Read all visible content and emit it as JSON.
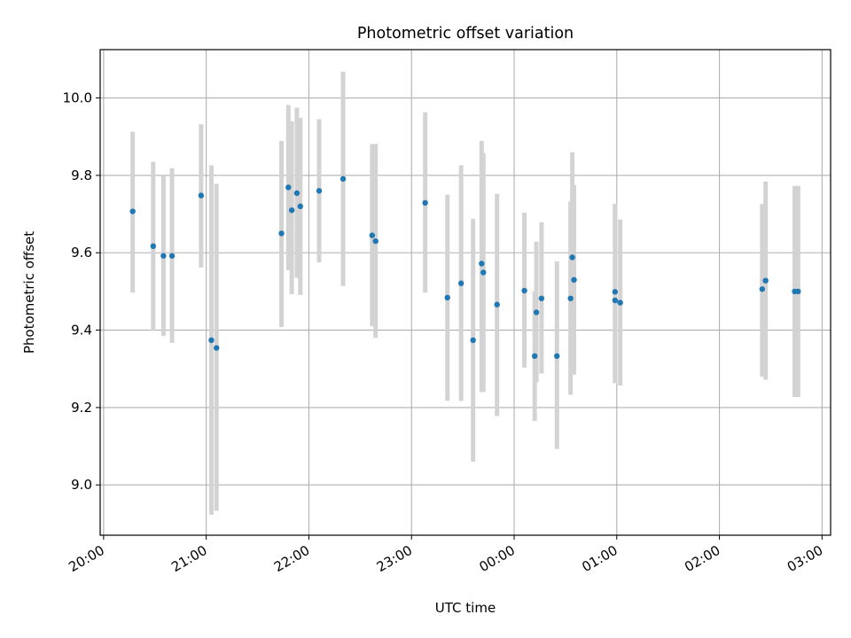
{
  "chart_data": {
    "type": "scatter",
    "title": "Photometric offset variation",
    "xlabel": "UTC time",
    "ylabel": "Photometric offset",
    "x_tick_labels": [
      "20:00",
      "21:00",
      "22:00",
      "23:00",
      "00:00",
      "01:00",
      "02:00",
      "03:00"
    ],
    "y_tick_labels": [
      "9.0",
      "9.2",
      "9.4",
      "9.6",
      "9.8",
      "10.0"
    ],
    "y_ticks": [
      9.0,
      9.2,
      9.4,
      9.6,
      9.8,
      10.0
    ],
    "xlim": [
      "19:58",
      "03:05"
    ],
    "ylim": [
      8.87,
      10.125
    ],
    "grid": true,
    "point_color": "#1f77b4",
    "errorbar_color": "#d3d3d3",
    "points": [
      {
        "x": "20:17",
        "y": 9.707,
        "yerr": [
          9.497,
          9.913
        ]
      },
      {
        "x": "20:29",
        "y": 9.617,
        "yerr": [
          9.4,
          9.835
        ]
      },
      {
        "x": "20:35",
        "y": 9.592,
        "yerr": [
          9.385,
          9.8
        ]
      },
      {
        "x": "20:40",
        "y": 9.592,
        "yerr": [
          9.367,
          9.818
        ]
      },
      {
        "x": "20:57",
        "y": 9.748,
        "yerr": [
          9.562,
          9.932
        ]
      },
      {
        "x": "21:03",
        "y": 9.374,
        "yerr": [
          8.923,
          9.826
        ]
      },
      {
        "x": "21:06",
        "y": 9.354,
        "yerr": [
          8.933,
          9.778
        ]
      },
      {
        "x": "21:44",
        "y": 9.65,
        "yerr": [
          9.408,
          9.889
        ]
      },
      {
        "x": "21:48",
        "y": 9.769,
        "yerr": [
          9.555,
          9.982
        ]
      },
      {
        "x": "21:50",
        "y": 9.71,
        "yerr": [
          9.493,
          9.94
        ]
      },
      {
        "x": "21:53",
        "y": 9.754,
        "yerr": [
          9.535,
          9.975
        ]
      },
      {
        "x": "21:55",
        "y": 9.72,
        "yerr": [
          9.491,
          9.949
        ]
      },
      {
        "x": "22:06",
        "y": 9.76,
        "yerr": [
          9.575,
          9.945
        ]
      },
      {
        "x": "22:20",
        "y": 9.791,
        "yerr": [
          9.514,
          10.068
        ]
      },
      {
        "x": "22:37",
        "y": 9.645,
        "yerr": [
          9.41,
          9.881
        ]
      },
      {
        "x": "22:39",
        "y": 9.63,
        "yerr": [
          9.38,
          9.881
        ]
      },
      {
        "x": "23:08",
        "y": 9.729,
        "yerr": [
          9.497,
          9.963
        ]
      },
      {
        "x": "23:21",
        "y": 9.484,
        "yerr": [
          9.217,
          9.75
        ]
      },
      {
        "x": "23:29",
        "y": 9.521,
        "yerr": [
          9.217,
          9.826
        ]
      },
      {
        "x": "23:36",
        "y": 9.374,
        "yerr": [
          9.06,
          9.688
        ]
      },
      {
        "x": "23:41",
        "y": 9.572,
        "yerr": [
          9.24,
          9.889
        ]
      },
      {
        "x": "23:42",
        "y": 9.549,
        "yerr": [
          9.24,
          9.858
        ]
      },
      {
        "x": "23:50",
        "y": 9.466,
        "yerr": [
          9.178,
          9.752
        ]
      },
      {
        "x": "00:06",
        "y": 9.502,
        "yerr": [
          9.303,
          9.704
        ]
      },
      {
        "x": "00:12",
        "y": 9.333,
        "yerr": [
          9.165,
          9.5
        ]
      },
      {
        "x": "00:13",
        "y": 9.446,
        "yerr": [
          9.265,
          9.629
        ]
      },
      {
        "x": "00:16",
        "y": 9.482,
        "yerr": [
          9.288,
          9.679
        ]
      },
      {
        "x": "00:25",
        "y": 9.333,
        "yerr": [
          9.093,
          9.578
        ]
      },
      {
        "x": "00:33",
        "y": 9.482,
        "yerr": [
          9.233,
          9.733
        ]
      },
      {
        "x": "00:34",
        "y": 9.588,
        "yerr": [
          9.315,
          9.86
        ]
      },
      {
        "x": "00:35",
        "y": 9.53,
        "yerr": [
          9.285,
          9.775
        ]
      },
      {
        "x": "00:59",
        "y": 9.499,
        "yerr": [
          9.263,
          9.726
        ]
      },
      {
        "x": "00:59",
        "y": 9.477,
        "yerr": [
          9.263,
          9.726
        ]
      },
      {
        "x": "01:02",
        "y": 9.471,
        "yerr": [
          9.257,
          9.686
        ]
      },
      {
        "x": "02:25",
        "y": 9.506,
        "yerr": [
          9.28,
          9.726
        ]
      },
      {
        "x": "02:27",
        "y": 9.528,
        "yerr": [
          9.272,
          9.784
        ]
      },
      {
        "x": "02:44",
        "y": 9.5,
        "yerr": [
          9.227,
          9.773
        ]
      },
      {
        "x": "02:46",
        "y": 9.5,
        "yerr": [
          9.227,
          9.773
        ]
      }
    ]
  }
}
